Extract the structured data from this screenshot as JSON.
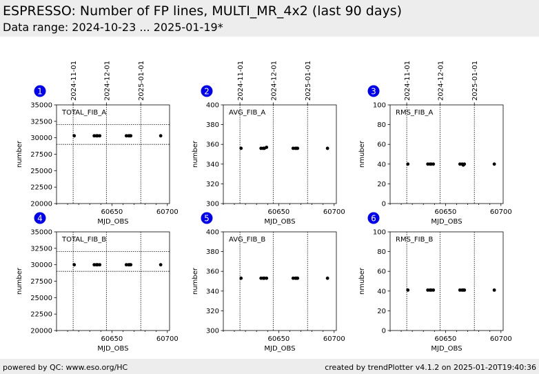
{
  "header": {
    "title": "ESPRESSO: Number of FP lines, MULTI_MR_4x2 (last 90 days)",
    "subtitle": "Data range: 2024-10-23 ... 2025-01-19*"
  },
  "footer": {
    "left": "powered by QC: www.eso.org/HC",
    "right": "created by trendPlotter v4.1.2 on 2025-01-20T19:40:36"
  },
  "colors": {
    "marker": "#000000",
    "badge": "#0000ee",
    "header_bg": "#ededed"
  },
  "chart_data": [
    {
      "type": "scatter",
      "panel_number": "1",
      "label": "TOTAL_FIB_A",
      "xlabel": "MJD_OBS",
      "ylabel": "number",
      "xlim": [
        60600,
        60702
      ],
      "ylim": [
        20000,
        35000
      ],
      "yticks": [
        20000,
        22500,
        25000,
        27500,
        30000,
        32500,
        35000
      ],
      "xticks": [
        60650,
        60700
      ],
      "top_date_ticks": [
        {
          "label": "2024-11-01",
          "x": 60615
        },
        {
          "label": "2024-12-01",
          "x": 60645
        },
        {
          "label": "2025-01-01",
          "x": 60676
        }
      ],
      "hlines": [
        29000,
        32000
      ],
      "x": [
        60616,
        60634,
        60636,
        60637,
        60639,
        60663,
        60665,
        60666,
        60667,
        60694
      ],
      "y": [
        30300,
        30300,
        30300,
        30300,
        30300,
        30300,
        30300,
        30300,
        30300,
        30300
      ]
    },
    {
      "type": "scatter",
      "panel_number": "2",
      "label": "AVG_FIB_A",
      "xlabel": "MJD_OBS",
      "ylabel": "number",
      "xlim": [
        60600,
        60702
      ],
      "ylim": [
        300,
        400
      ],
      "yticks": [
        300,
        320,
        340,
        360,
        380,
        400
      ],
      "xticks": [
        60650,
        60700
      ],
      "top_date_ticks": [
        {
          "label": "2024-11-01",
          "x": 60615
        },
        {
          "label": "2024-12-01",
          "x": 60645
        },
        {
          "label": "2025-01-01",
          "x": 60676
        }
      ],
      "hlines": [],
      "x": [
        60616,
        60634,
        60636,
        60637,
        60639,
        60663,
        60665,
        60666,
        60667,
        60694
      ],
      "y": [
        356,
        356,
        356,
        356,
        357,
        356,
        356,
        356,
        356,
        356
      ]
    },
    {
      "type": "scatter",
      "panel_number": "3",
      "label": "RMS_FIB_A",
      "xlabel": "MJD_OBS",
      "ylabel": "nmuber",
      "xlim": [
        60600,
        60702
      ],
      "ylim": [
        0,
        100
      ],
      "yticks": [
        0,
        20,
        40,
        60,
        80,
        100
      ],
      "xticks": [
        60650,
        60700
      ],
      "top_date_ticks": [
        {
          "label": "2024-11-01",
          "x": 60615
        },
        {
          "label": "2024-12-01",
          "x": 60645
        },
        {
          "label": "2025-01-01",
          "x": 60676
        }
      ],
      "hlines": [],
      "x": [
        60616,
        60634,
        60636,
        60637,
        60639,
        60663,
        60665,
        60666,
        60667,
        60694
      ],
      "y": [
        40,
        40,
        40,
        40,
        40,
        40,
        40,
        39,
        40,
        40
      ]
    },
    {
      "type": "scatter",
      "panel_number": "4",
      "label": "TOTAL_FIB_B",
      "xlabel": "MJD_OBS",
      "ylabel": "number",
      "xlim": [
        60600,
        60702
      ],
      "ylim": [
        20000,
        35000
      ],
      "yticks": [
        20000,
        22500,
        25000,
        27500,
        30000,
        32500,
        35000
      ],
      "xticks": [
        60650,
        60700
      ],
      "top_date_ticks": [],
      "hlines": [
        29000,
        32000
      ],
      "x": [
        60616,
        60634,
        60636,
        60637,
        60639,
        60663,
        60665,
        60666,
        60667,
        60694
      ],
      "y": [
        30000,
        30000,
        30000,
        30000,
        30000,
        30000,
        30000,
        30000,
        30000,
        30000
      ]
    },
    {
      "type": "scatter",
      "panel_number": "5",
      "label": "AVG_FIB_B",
      "xlabel": "MJD_OBS",
      "ylabel": "number",
      "xlim": [
        60600,
        60702
      ],
      "ylim": [
        300,
        400
      ],
      "yticks": [
        300,
        320,
        340,
        360,
        380,
        400
      ],
      "xticks": [
        60650,
        60700
      ],
      "top_date_ticks": [],
      "hlines": [],
      "x": [
        60616,
        60634,
        60636,
        60637,
        60639,
        60663,
        60665,
        60666,
        60667,
        60694
      ],
      "y": [
        353,
        353,
        353,
        353,
        353,
        353,
        353,
        353,
        353,
        353
      ]
    },
    {
      "type": "scatter",
      "panel_number": "6",
      "label": "RMS_FIB_B",
      "xlabel": "MJD_OBS",
      "ylabel": "nmuber",
      "xlim": [
        60600,
        60702
      ],
      "ylim": [
        0,
        100
      ],
      "yticks": [
        0,
        20,
        40,
        60,
        80,
        100
      ],
      "xticks": [
        60650,
        60700
      ],
      "top_date_ticks": [],
      "hlines": [],
      "x": [
        60616,
        60634,
        60636,
        60637,
        60639,
        60663,
        60665,
        60666,
        60667,
        60694
      ],
      "y": [
        41,
        41,
        41,
        41,
        41,
        41,
        41,
        41,
        41,
        41
      ]
    }
  ]
}
